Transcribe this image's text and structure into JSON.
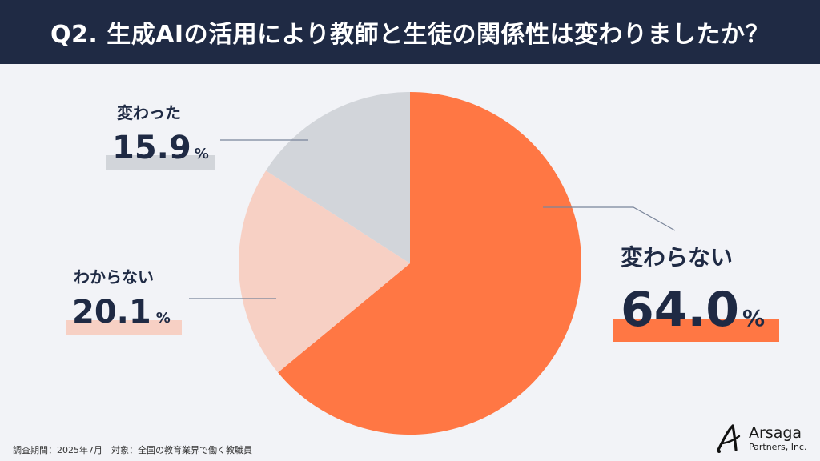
{
  "header": {
    "title": "Q2. 生成AIの活用により教師と生徒の関係性は変わりましたか？"
  },
  "chart_data": {
    "type": "pie",
    "title": "Q2. 生成AIの活用により教師と生徒の関係性は変わりましたか？",
    "categories": [
      "変わらない",
      "わからない",
      "変わった"
    ],
    "values": [
      64.0,
      20.1,
      15.9
    ],
    "unit": "%",
    "colors": [
      "#ff7744",
      "#f7d0c4",
      "#d2d5da"
    ],
    "start_angle": "12 o'clock, clockwise",
    "legend_position": "direct labels with leader lines"
  },
  "labels": {
    "unchanged": {
      "category": "変わらない",
      "value": "64.0",
      "unit": "%",
      "bar_color": "#ff7744"
    },
    "unknown": {
      "category": "わからない",
      "value": "20.1",
      "unit": "%",
      "bar_color": "#f7d0c4"
    },
    "changed": {
      "category": "変わった",
      "value": "15.9",
      "unit": "%",
      "bar_color": "#d2d5da"
    }
  },
  "footer": {
    "note": "調査期間：2025年7月　対象：全国の教育業界で働く教職員"
  },
  "logo": {
    "name": "Arsaga",
    "subtitle": "Partners, Inc."
  },
  "colors": {
    "header_bg": "#1f2a44",
    "page_bg": "#f2f3f7",
    "text_dark": "#1f2a44",
    "leader_line": "#7a859a"
  }
}
